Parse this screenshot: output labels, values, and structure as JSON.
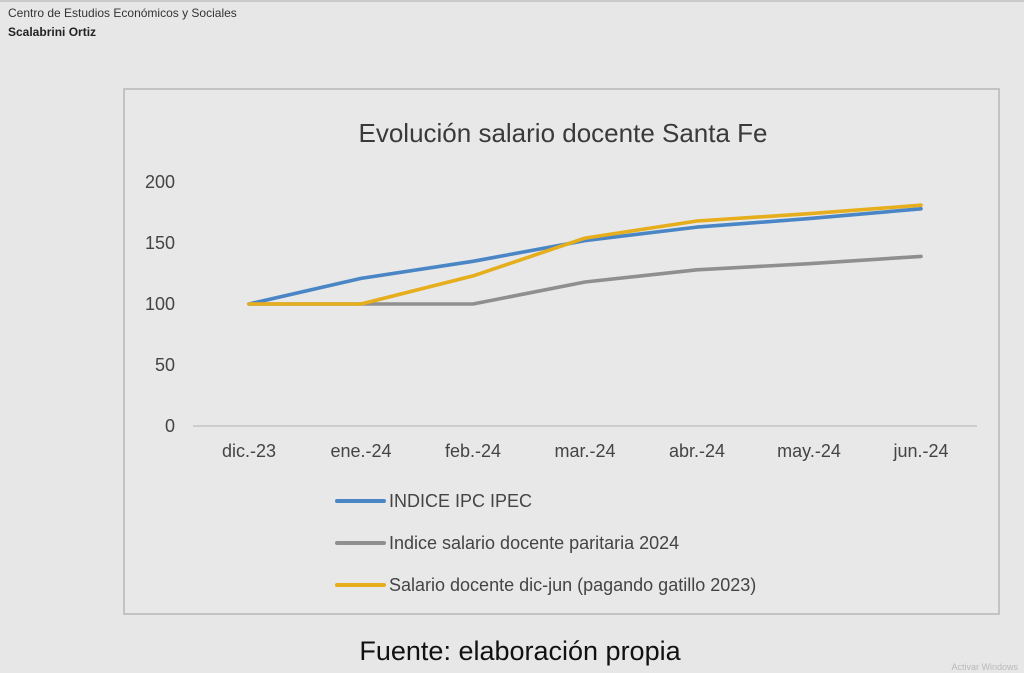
{
  "header": {
    "org": "Centro de Estudios Económicos y Sociales",
    "name": "Scalabrini Ortiz"
  },
  "source": "Fuente: elaboración propia",
  "watermark": "Activar Windows",
  "colors": {
    "series_ipc": "#4a86c5",
    "series_paritaria": "#8f8f8f",
    "series_gatillo": "#e6ad1c",
    "axis": "#bdbdbd",
    "text": "#444444"
  },
  "chart_data": {
    "type": "line",
    "title": "Evolución salario docente Santa Fe",
    "xlabel": "",
    "ylabel": "",
    "categories": [
      "dic.-23",
      "ene.-24",
      "feb.-24",
      "mar.-24",
      "abr.-24",
      "may.-24",
      "jun.-24"
    ],
    "ylim": [
      0,
      200
    ],
    "yticks": [
      0,
      50,
      100,
      150,
      200
    ],
    "grid": false,
    "legend_position": "bottom",
    "series": [
      {
        "name": "INDICE IPC IPEC",
        "color": "#4a86c5",
        "values": [
          100,
          121,
          135,
          152,
          163,
          170,
          178
        ]
      },
      {
        "name": "Indice salario docente paritaria 2024",
        "color": "#8f8f8f",
        "values": [
          100,
          100,
          100,
          118,
          128,
          133,
          139
        ]
      },
      {
        "name": "Salario docente dic-jun (pagando gatillo 2023)",
        "color": "#e6ad1c",
        "values": [
          100,
          100,
          123,
          154,
          168,
          174,
          181
        ]
      }
    ]
  }
}
